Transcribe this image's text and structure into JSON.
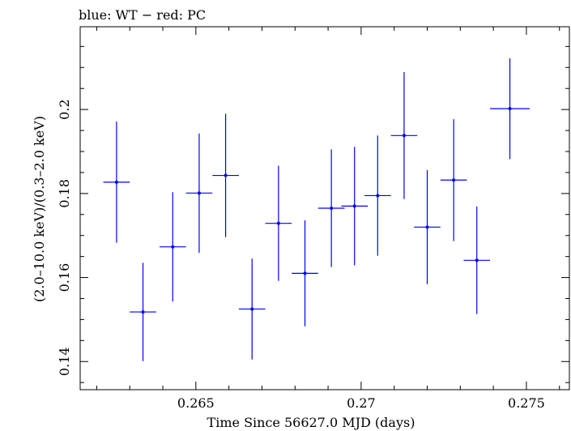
{
  "chart_data": {
    "type": "scatter",
    "title": "blue: WT − red: PC",
    "xlabel": "Time Since 56627.0 MJD (days)",
    "ylabel": "(2.0–10.0 keV)/(0.3–2.0 keV)",
    "xlim": [
      0.2615,
      0.2763
    ],
    "ylim": [
      0.1333,
      0.2197
    ],
    "xticks": [
      0.265,
      0.27,
      0.275
    ],
    "xtick_labels": [
      "0.265",
      "0.27",
      "0.275"
    ],
    "yticks": [
      0.14,
      0.16,
      0.18,
      0.2
    ],
    "ytick_labels": [
      "0.14",
      "0.16",
      "0.18",
      "0.2"
    ],
    "grid": false,
    "series": [
      {
        "color": "#0000ff",
        "points": [
          {
            "x": 0.2626,
            "xerr": 0.0004,
            "y": 0.1827,
            "yerr": 0.0144
          },
          {
            "x": 0.2634,
            "xerr": 0.0004,
            "y": 0.1518,
            "yerr": 0.0117
          },
          {
            "x": 0.2643,
            "xerr": 0.0004,
            "y": 0.1673,
            "yerr": 0.013
          },
          {
            "x": 0.2651,
            "xerr": 0.0004,
            "y": 0.1801,
            "yerr": 0.0142
          },
          {
            "x": 0.2659,
            "xerr": 0.0004,
            "y": 0.1843,
            "yerr": 0.0147
          },
          {
            "x": 0.2667,
            "xerr": 0.0004,
            "y": 0.1525,
            "yerr": 0.012
          },
          {
            "x": 0.2675,
            "xerr": 0.0004,
            "y": 0.1729,
            "yerr": 0.0137
          },
          {
            "x": 0.2683,
            "xerr": 0.0004,
            "y": 0.161,
            "yerr": 0.0126
          },
          {
            "x": 0.2691,
            "xerr": 0.0004,
            "y": 0.1765,
            "yerr": 0.014
          },
          {
            "x": 0.2698,
            "xerr": 0.0004,
            "y": 0.177,
            "yerr": 0.0141
          },
          {
            "x": 0.2705,
            "xerr": 0.0004,
            "y": 0.1795,
            "yerr": 0.0143
          },
          {
            "x": 0.2713,
            "xerr": 0.0004,
            "y": 0.1938,
            "yerr": 0.0151
          },
          {
            "x": 0.272,
            "xerr": 0.0004,
            "y": 0.172,
            "yerr": 0.0136
          },
          {
            "x": 0.2728,
            "xerr": 0.0004,
            "y": 0.1832,
            "yerr": 0.0145
          },
          {
            "x": 0.2735,
            "xerr": 0.0004,
            "y": 0.1641,
            "yerr": 0.0128
          },
          {
            "x": 0.2745,
            "xerr": 0.0006,
            "y": 0.2002,
            "yerr": 0.012
          }
        ]
      }
    ]
  }
}
